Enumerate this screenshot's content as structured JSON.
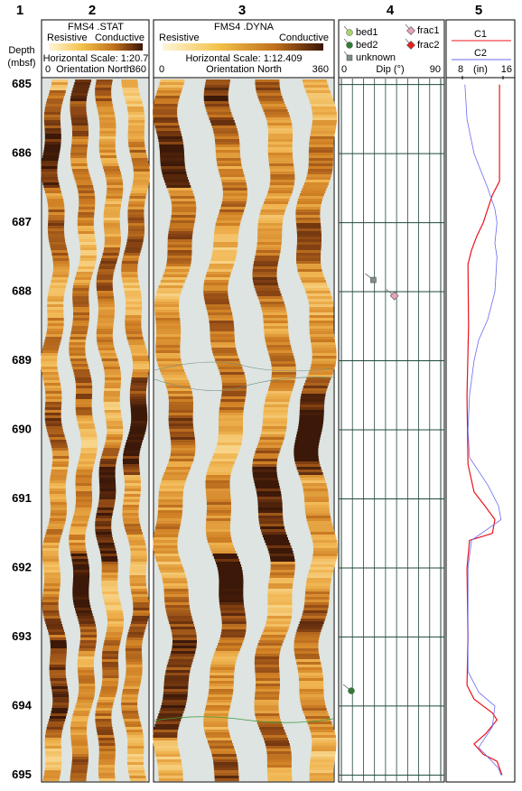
{
  "column_numbers": [
    "1",
    "2",
    "3",
    "4",
    "5"
  ],
  "depth_label": [
    "Depth",
    "(mbsf)"
  ],
  "depth_lim": [
    684.9,
    695.1
  ],
  "depth_ticks": [
    685,
    686,
    687,
    688,
    689,
    690,
    691,
    692,
    693,
    694,
    695
  ],
  "stat": {
    "title": "FMS4 .STAT",
    "left": "Resistive",
    "right": "Conductive",
    "scale": "Horizontal Scale: 1:20.7",
    "axis_left": "0",
    "axis_label": "Orientation North",
    "axis_right": "360"
  },
  "dyna": {
    "title": "FMS4 .DYNA",
    "left": "Resistive",
    "right": "Conductive",
    "scale": "Horizontal Scale:  1:12.409",
    "axis_left": "0",
    "axis_label": "Orientation North",
    "axis_right": "360"
  },
  "dip": {
    "label": "Dip (°)",
    "xlim": [
      0,
      90
    ],
    "xticks": [
      0,
      90
    ],
    "series": [
      {
        "name": "bed1",
        "color": "#a9d46c",
        "shape": "circle",
        "depth": [],
        "values": []
      },
      {
        "name": "bed2",
        "color": "#2e7d32",
        "shape": "circle",
        "depth": [
          693.78
        ],
        "values": [
          9
        ]
      },
      {
        "name": "unknown",
        "color": "#7f8c8d",
        "shape": "square",
        "depth": [
          687.83
        ],
        "values": [
          29
        ]
      },
      {
        "name": "frac1",
        "color": "#e8a3b4",
        "shape": "diamond",
        "depth": [
          688.06
        ],
        "values": [
          48
        ]
      },
      {
        "name": "frac2",
        "color": "#e8201c",
        "shape": "diamond",
        "depth": [],
        "values": []
      }
    ]
  },
  "caliper": {
    "unit": "(in)",
    "xlim": [
      8,
      16
    ],
    "xticks": [
      8,
      16
    ],
    "series": [
      {
        "name": "C1",
        "color": "#e8141c",
        "depth": [
          685,
          686.4,
          686.6,
          686.8,
          687.0,
          687.2,
          687.4,
          687.6,
          688.5,
          689.5,
          690.5,
          690.9,
          691.1,
          691.3,
          691.5,
          691.6,
          692,
          693,
          693.7,
          693.9,
          694.1,
          694.2,
          694.4,
          694.55,
          694.7,
          694.8,
          695
        ],
        "values": [
          15.3,
          15.3,
          13.9,
          13.0,
          12.1,
          10.8,
          9.8,
          9.1,
          9.2,
          8.9,
          9.1,
          10.3,
          12.4,
          14.4,
          13.9,
          9.4,
          8.9,
          9.1,
          8.9,
          10.3,
          13.9,
          14.8,
          12.6,
          10.3,
          12.1,
          14.8,
          15.8
        ]
      },
      {
        "name": "C2",
        "color": "#6a6af0",
        "depth": [
          685,
          685.5,
          686,
          686.5,
          686.8,
          687,
          687.3,
          687.5,
          688,
          688.4,
          688.7,
          689,
          689.5,
          690,
          690.4,
          690.8,
          691.1,
          691.3,
          691.6,
          692,
          693.5,
          693.8,
          694,
          694.3,
          694.6,
          694.9,
          695
        ],
        "values": [
          8.5,
          8.9,
          10.3,
          13.0,
          14.4,
          14.8,
          14.4,
          14.8,
          14.4,
          13.0,
          11.2,
          10.3,
          9.4,
          9.1,
          9.4,
          13.0,
          15.1,
          15.6,
          9.8,
          9.1,
          9.1,
          11.2,
          14.4,
          13.9,
          11.2,
          15.1,
          15.6
        ]
      }
    ]
  }
}
